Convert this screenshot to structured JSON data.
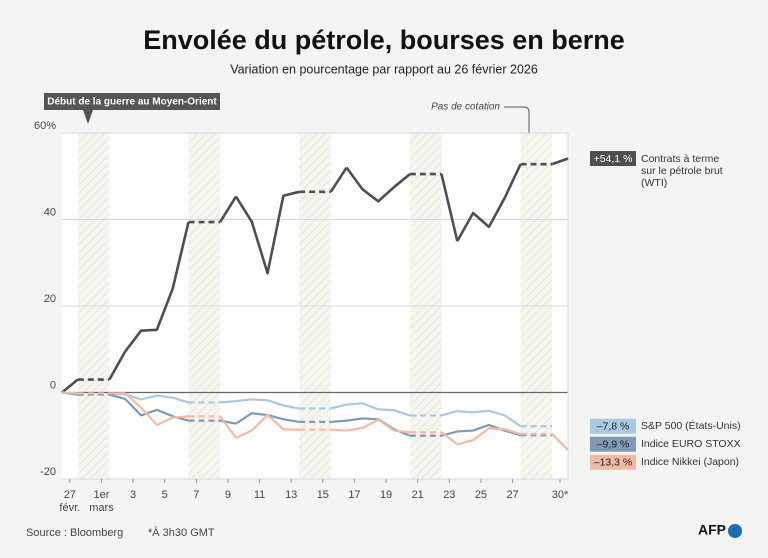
{
  "chart_data": {
    "type": "line",
    "title": "Envolée du pétrole, bourses en berne",
    "subtitle": "Variation en pourcentage par rapport au 26 février 2026",
    "annotations": [
      "Début de la guerre au Moyen-Orient",
      "Pas de cotation"
    ],
    "source": "Source : Bloomberg",
    "note": "*À 3h30 GMT",
    "logo": "AFP",
    "categories": [
      null,
      "27 févr.",
      null,
      "1er mars",
      null,
      "3",
      null,
      "5",
      null,
      "7",
      null,
      "9",
      null,
      "11",
      null,
      "13",
      null,
      "15",
      null,
      "17",
      null,
      "19",
      null,
      "21",
      null,
      "23",
      null,
      "25",
      null,
      "27",
      null,
      null,
      "30*"
    ],
    "series": [
      {
        "name": "Contrats à terme sur le pétrole brut (WTI)",
        "color": "#4d4f50",
        "values": [
          0,
          3,
          null,
          null,
          9.5,
          14.3,
          14.5,
          24,
          39.4,
          null,
          null,
          45.3,
          39.5,
          27.6,
          45.5,
          46.4,
          null,
          null,
          52,
          47,
          44.2,
          47.5,
          50.5,
          null,
          null,
          35,
          41.5,
          38.3,
          45,
          52.8,
          null,
          null,
          54.1
        ],
        "value_labels": [
          null,
          null,
          null,
          null,
          null,
          null,
          null,
          null,
          null,
          null,
          null,
          null,
          null,
          null,
          null,
          null,
          null,
          null,
          null,
          null,
          null,
          null,
          null,
          null,
          null,
          null,
          null,
          null,
          null,
          null,
          null,
          null,
          "+54,1 %"
        ]
      },
      {
        "name": "S&P 500 (États-Unis)",
        "color": "#a9c8e2",
        "values": [
          0,
          -0.3,
          null,
          null,
          -0.4,
          -1.6,
          -0.7,
          -1.2,
          -2.3,
          null,
          null,
          -2,
          -1.6,
          -1.8,
          -3,
          -3.7,
          null,
          null,
          -2.8,
          -2.5,
          -3.9,
          -4.1,
          -5.3,
          null,
          null,
          -4.3,
          -4.6,
          -4.2,
          -5.3,
          -7.8,
          null,
          null,
          null
        ],
        "value_labels": [
          null,
          null,
          null,
          null,
          null,
          null,
          null,
          null,
          null,
          null,
          null,
          null,
          null,
          null,
          null,
          null,
          null,
          null,
          null,
          null,
          null,
          null,
          null,
          null,
          null,
          null,
          null,
          null,
          null,
          "–7,8 %",
          null,
          null,
          null
        ]
      },
      {
        "name": "Indice EURO STOXX",
        "color": "#7f9ab4",
        "values": [
          0,
          -0.5,
          null,
          null,
          -1.5,
          -5.3,
          -4,
          -5.5,
          -6.5,
          null,
          null,
          -7.2,
          -4.8,
          -5.2,
          -6.2,
          -6.8,
          null,
          null,
          -6.5,
          -6,
          -6.2,
          -8.5,
          -10,
          null,
          null,
          -9,
          -8.8,
          -7.5,
          -8.8,
          -9.9,
          null,
          null,
          null
        ],
        "value_labels": [
          null,
          null,
          null,
          null,
          null,
          null,
          null,
          null,
          null,
          null,
          null,
          null,
          null,
          null,
          null,
          null,
          null,
          null,
          null,
          null,
          null,
          null,
          null,
          null,
          null,
          null,
          null,
          null,
          null,
          "–9,9 %",
          null,
          null,
          null
        ]
      },
      {
        "name": "Indice Nikkei (Japon)",
        "color": "#f2b9a3",
        "values": [
          0,
          -0.2,
          null,
          null,
          -0.2,
          -3.5,
          -7.5,
          -5.8,
          -5.5,
          null,
          null,
          -10.5,
          -8.8,
          -5.2,
          -8.5,
          -8.6,
          null,
          null,
          -8.8,
          -8.2,
          -6.3,
          -8.8,
          -9.2,
          null,
          null,
          -12,
          -11,
          -8.3,
          -8.5,
          -9.6,
          null,
          null,
          -13.3
        ],
        "value_labels": [
          null,
          null,
          null,
          null,
          null,
          null,
          null,
          null,
          null,
          null,
          null,
          null,
          null,
          null,
          null,
          null,
          null,
          null,
          null,
          null,
          null,
          null,
          null,
          null,
          null,
          null,
          null,
          null,
          null,
          null,
          null,
          null,
          "–13,3 %"
        ]
      }
    ],
    "ylim": [
      -20,
      60
    ],
    "yticks": [
      -20,
      0,
      20,
      40,
      {
        "value": 60,
        "label": "60%"
      }
    ],
    "grid": true
  }
}
